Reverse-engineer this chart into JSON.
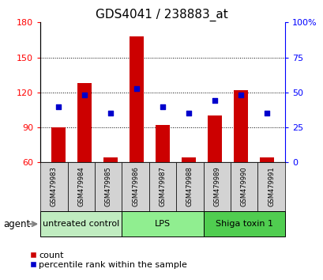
{
  "title": "GDS4041 / 238883_at",
  "samples": [
    "GSM479983",
    "GSM479984",
    "GSM479985",
    "GSM479986",
    "GSM479987",
    "GSM479988",
    "GSM479989",
    "GSM479990",
    "GSM479991"
  ],
  "counts": [
    90,
    128,
    64,
    168,
    92,
    64,
    100,
    122,
    64
  ],
  "percentiles": [
    40,
    48,
    35,
    53,
    40,
    35,
    44,
    48,
    35
  ],
  "ylim_left": [
    60,
    180
  ],
  "ylim_right": [
    0,
    100
  ],
  "yticks_left": [
    60,
    90,
    120,
    150,
    180
  ],
  "yticks_right": [
    0,
    25,
    50,
    75,
    100
  ],
  "groups": [
    {
      "label": "untreated control",
      "start": 0,
      "end": 3,
      "color": "#90ee90"
    },
    {
      "label": "LPS",
      "start": 3,
      "end": 6,
      "color": "#90ee90"
    },
    {
      "label": "Shiga toxin 1",
      "start": 6,
      "end": 9,
      "color": "#50cd50"
    }
  ],
  "bar_color": "#cc0000",
  "point_color": "#0000cc",
  "bar_width": 0.55,
  "agent_label": "agent",
  "legend_count": "count",
  "legend_percentile": "percentile rank within the sample",
  "title_fontsize": 11,
  "tick_fontsize": 8,
  "legend_fontsize": 8,
  "sample_label_fontsize": 6,
  "group_label_fontsize": 8,
  "group_colors": [
    "#c0ecc0",
    "#90ee90",
    "#50cd50"
  ]
}
